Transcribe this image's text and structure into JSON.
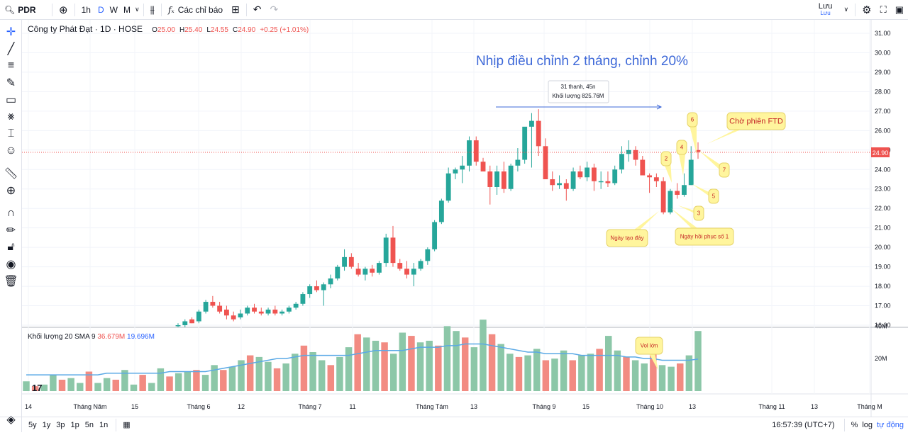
{
  "topbar": {
    "symbol": "PDR",
    "intervals": [
      "1h",
      "D",
      "W",
      "M"
    ],
    "active_interval": "D",
    "indicators_label": "Các chỉ báo",
    "save_label": "Lưu",
    "save_sub": "Lưu"
  },
  "legend": {
    "title": "Công ty Phát Đạt · 1D · HOSE",
    "o_label": "O",
    "o": "25.00",
    "h_label": "H",
    "h": "25.40",
    "l_label": "L",
    "l": "24.55",
    "c_label": "C",
    "c": "24.90",
    "change": "+0.25 (+1.01%)"
  },
  "volume_legend": {
    "label": "Khối lượng 20 SMA 9",
    "vol": "36.679M",
    "sma": "19.696M"
  },
  "annotations": {
    "headline": "Nhịp điều chỉnh 2 tháng, chỉnh 20%",
    "measure_line1": "31 thanh, 45n",
    "measure_line2": "Khối lượng 825.76M",
    "ftd": "Chờ phiên FTD",
    "bottom_day": "Ngày tạo đáy",
    "recovery_day": "Ngày hồi phục số 1",
    "vol_big": "Vol lớn",
    "counts": [
      "2",
      "3",
      "4",
      "5",
      "6",
      "7"
    ]
  },
  "price_axis": [
    "31.00",
    "30.00",
    "29.00",
    "28.00",
    "27.00",
    "26.00",
    "25.00",
    "24.00",
    "23.00",
    "22.00",
    "21.00",
    "20.00",
    "19.00",
    "18.00",
    "17.00",
    "16.00"
  ],
  "current_price_label": "24.90",
  "volume_axis": [
    "40M",
    "20M"
  ],
  "time_axis": [
    "14",
    "Tháng Năm",
    "15",
    "Tháng 6",
    "12",
    "Tháng 7",
    "11",
    "Tháng Tám",
    "13",
    "Tháng 9",
    "15",
    "Tháng 10",
    "13",
    "Tháng 11",
    "13",
    "Tháng M"
  ],
  "colors": {
    "up": "#26a69a",
    "down": "#ef5350",
    "vol_up": "#8cc7a8",
    "vol_down": "#f28b82",
    "sma": "#5aa9e6",
    "annotation": "#fff59d",
    "headline": "#3d68d8"
  },
  "bottombar": {
    "ranges": [
      "5y",
      "1y",
      "3p",
      "1p",
      "5n",
      "1n"
    ],
    "time": "16:57:39 (UTC+7)",
    "percent": "%",
    "log": "log",
    "auto": "tự động"
  },
  "chart_data": {
    "type": "candlestick",
    "price_range": [
      16,
      31
    ],
    "volume_range_millions": [
      0,
      48
    ],
    "candles_ohlc": [
      [
        16.0,
        16.1,
        15.9,
        16.0
      ],
      [
        16.0,
        16.3,
        15.9,
        16.2
      ],
      [
        16.3,
        16.4,
        16.1,
        16.1
      ],
      [
        16.2,
        16.8,
        16.1,
        16.7
      ],
      [
        16.7,
        17.3,
        16.6,
        17.2
      ],
      [
        17.2,
        17.5,
        16.9,
        17.0
      ],
      [
        17.0,
        17.2,
        16.6,
        16.7
      ],
      [
        16.8,
        17.0,
        16.3,
        16.5
      ],
      [
        16.5,
        16.7,
        16.2,
        16.3
      ],
      [
        16.4,
        16.8,
        16.3,
        16.6
      ],
      [
        16.6,
        17.0,
        16.5,
        16.9
      ],
      [
        16.9,
        17.1,
        16.6,
        16.7
      ],
      [
        16.7,
        16.9,
        16.5,
        16.6
      ],
      [
        16.6,
        16.9,
        16.5,
        16.8
      ],
      [
        16.8,
        17.0,
        16.5,
        16.6
      ],
      [
        16.6,
        16.8,
        16.5,
        16.7
      ],
      [
        16.7,
        17.0,
        16.6,
        16.9
      ],
      [
        16.9,
        17.2,
        16.8,
        17.1
      ],
      [
        17.1,
        17.7,
        17.0,
        17.6
      ],
      [
        17.6,
        18.1,
        17.4,
        18.0
      ],
      [
        18.0,
        18.3,
        17.7,
        17.8
      ],
      [
        17.8,
        18.2,
        17.0,
        18.1
      ],
      [
        18.1,
        18.6,
        17.9,
        18.4
      ],
      [
        18.4,
        19.1,
        18.3,
        19.0
      ],
      [
        19.0,
        19.9,
        18.8,
        19.5
      ],
      [
        19.5,
        19.7,
        18.9,
        19.0
      ],
      [
        18.9,
        19.2,
        18.5,
        18.6
      ],
      [
        18.6,
        19.0,
        18.3,
        18.9
      ],
      [
        18.9,
        19.1,
        18.5,
        18.7
      ],
      [
        18.7,
        19.3,
        18.6,
        19.2
      ],
      [
        19.2,
        20.7,
        19.0,
        20.5
      ],
      [
        20.5,
        21.1,
        19.0,
        19.2
      ],
      [
        19.2,
        19.4,
        18.8,
        18.9
      ],
      [
        18.9,
        19.3,
        18.4,
        18.6
      ],
      [
        18.6,
        19.2,
        18.0,
        18.9
      ],
      [
        18.9,
        19.4,
        18.8,
        19.3
      ],
      [
        19.3,
        20.0,
        19.1,
        19.9
      ],
      [
        19.9,
        21.4,
        19.8,
        21.3
      ],
      [
        21.3,
        22.5,
        21.2,
        22.4
      ],
      [
        22.4,
        24.1,
        22.3,
        23.8
      ],
      [
        23.8,
        24.1,
        23.5,
        24.0
      ],
      [
        24.0,
        24.7,
        23.3,
        24.2
      ],
      [
        24.2,
        25.7,
        23.9,
        25.5
      ],
      [
        25.5,
        25.7,
        24.2,
        24.4
      ],
      [
        24.4,
        24.6,
        24.0,
        23.9
      ],
      [
        23.9,
        24.2,
        22.2,
        23.1
      ],
      [
        23.1,
        24.2,
        22.7,
        23.9
      ],
      [
        23.9,
        24.4,
        22.8,
        23.0
      ],
      [
        23.0,
        24.3,
        22.9,
        24.2
      ],
      [
        24.2,
        25.1,
        23.9,
        24.5
      ],
      [
        24.5,
        25.6,
        24.3,
        26.2
      ],
      [
        26.2,
        26.9,
        24.1,
        26.5
      ],
      [
        26.5,
        27.1,
        24.7,
        25.2
      ],
      [
        25.2,
        25.6,
        24.0,
        23.5
      ],
      [
        23.5,
        23.9,
        22.9,
        23.2
      ],
      [
        23.2,
        23.7,
        23.0,
        23.3
      ],
      [
        23.3,
        23.5,
        22.4,
        23.0
      ],
      [
        23.0,
        24.1,
        22.9,
        23.9
      ],
      [
        23.9,
        24.2,
        23.5,
        23.6
      ],
      [
        23.6,
        24.4,
        23.4,
        24.1
      ],
      [
        24.1,
        24.3,
        22.9,
        23.4
      ],
      [
        23.4,
        23.9,
        23.0,
        23.4
      ],
      [
        23.4,
        23.9,
        23.1,
        23.3
      ],
      [
        23.3,
        24.2,
        23.2,
        24.0
      ],
      [
        24.0,
        25.2,
        23.8,
        24.8
      ],
      [
        24.8,
        25.5,
        24.4,
        25.0
      ],
      [
        25.0,
        25.2,
        24.2,
        24.5
      ],
      [
        24.5,
        24.7,
        23.7,
        23.7
      ],
      [
        23.7,
        23.8,
        22.8,
        23.6
      ],
      [
        23.6,
        23.8,
        23.1,
        23.4
      ],
      [
        23.4,
        23.6,
        21.7,
        21.8
      ],
      [
        21.8,
        23.0,
        21.7,
        22.9
      ],
      [
        22.9,
        23.3,
        22.5,
        22.7
      ],
      [
        22.7,
        23.8,
        22.6,
        23.2
      ],
      [
        23.2,
        25.2,
        23.2,
        24.5
      ],
      [
        25.0,
        25.4,
        24.55,
        24.9
      ]
    ],
    "volume_millions": [
      6,
      3,
      4,
      10,
      7,
      8,
      5,
      12,
      5,
      8,
      7,
      13,
      4,
      10,
      5,
      14,
      9,
      11,
      12,
      13,
      10,
      16,
      13,
      15,
      19,
      22,
      21,
      18,
      14,
      17,
      23,
      28,
      24,
      19,
      16,
      21,
      27,
      35,
      33,
      31,
      30,
      23,
      36,
      34,
      30,
      31,
      28,
      40,
      37,
      33,
      27,
      44,
      35,
      29,
      23,
      21,
      22,
      26,
      19,
      20,
      25,
      19,
      22,
      23,
      26,
      34,
      25,
      21,
      19,
      17,
      25,
      16,
      15,
      17,
      22,
      37
    ],
    "sma_millions": [
      10,
      10,
      10,
      10,
      10,
      10,
      10,
      10,
      10,
      11,
      11,
      11,
      11,
      11,
      11,
      11,
      12,
      12,
      12,
      12,
      12,
      13,
      14,
      15,
      16,
      17,
      18,
      19,
      20,
      20,
      21,
      22,
      22,
      22,
      22,
      22,
      22,
      23,
      24,
      25,
      25,
      25,
      25,
      26,
      27,
      27,
      27,
      28,
      28,
      29,
      29,
      29,
      28,
      27,
      26,
      25,
      24,
      24,
      23,
      23,
      23,
      23,
      22,
      22,
      22,
      22,
      22,
      21,
      21,
      20,
      20,
      19,
      19,
      19,
      19,
      19.7
    ]
  }
}
